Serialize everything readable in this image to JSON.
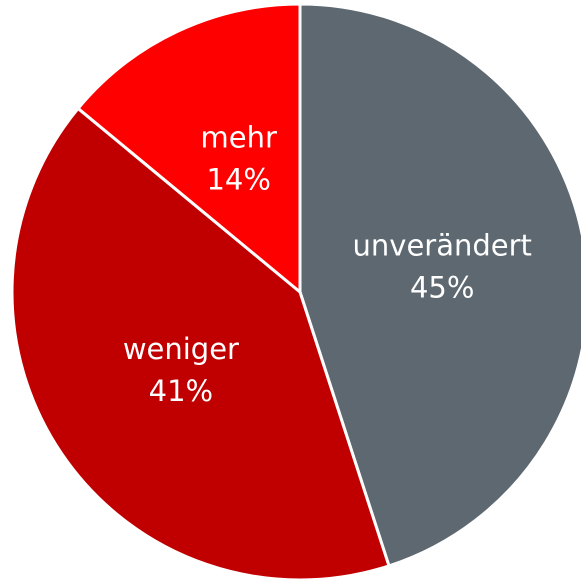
{
  "chart_data": {
    "type": "pie",
    "categories": [
      "unverändert",
      "weniger",
      "mehr"
    ],
    "values": [
      45,
      41,
      14
    ],
    "value_labels": [
      "45%",
      "41%",
      "14%"
    ],
    "colors": [
      "#5e6870",
      "#c00000",
      "#ff0000"
    ]
  }
}
